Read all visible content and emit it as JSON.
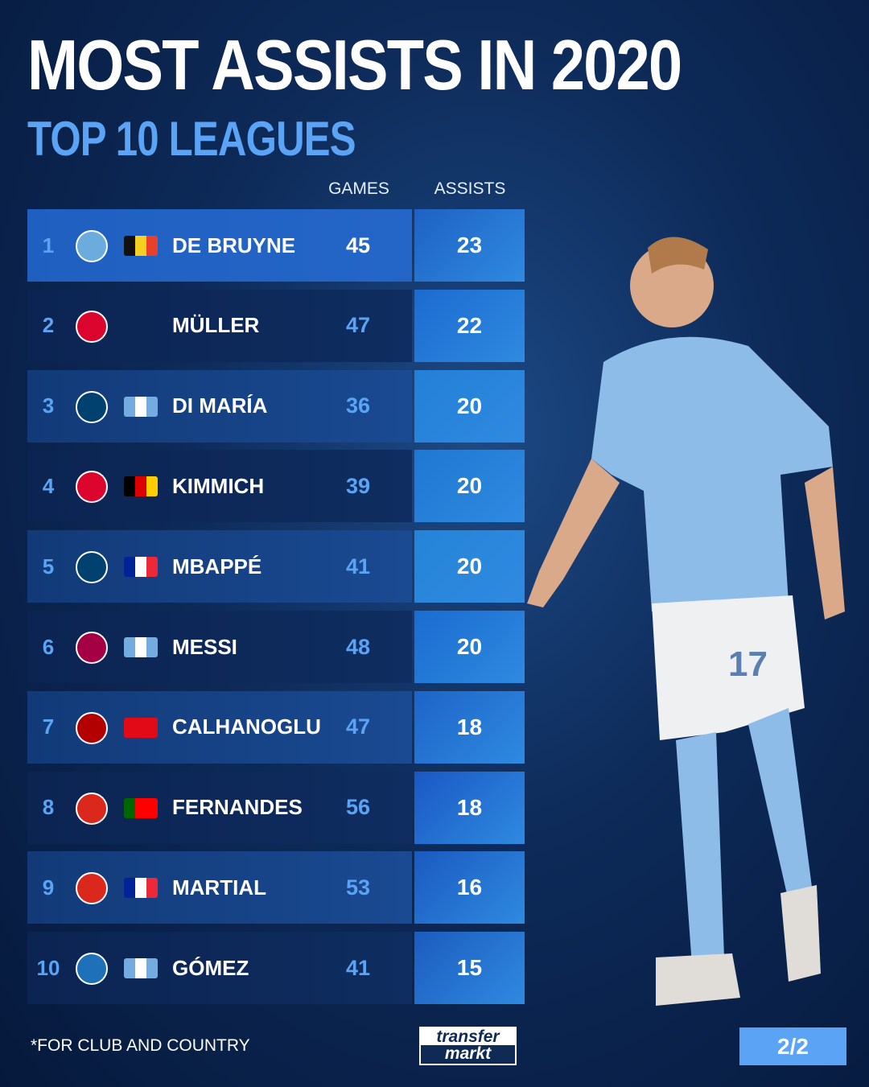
{
  "title": "MOST ASSISTS IN 2020",
  "subtitle": "TOP 10 LEAGUES",
  "footnote": "*FOR CLUB AND COUNTRY",
  "logo": {
    "line1": "transfer",
    "line2": "markt"
  },
  "page_indicator": "2/2",
  "player_shirt_number": "17",
  "colors": {
    "accent": "#5ba4f5",
    "highlight_row": "#1f5fc0",
    "background": "#0d2a58"
  },
  "chart_data": {
    "type": "table",
    "columns": [
      "GAMES",
      "ASSISTS"
    ],
    "rows": [
      {
        "rank": "1",
        "club": "manchester-city-crest",
        "flag": "belgium-flag",
        "flag_colors": [
          "#111111",
          "#f5d020",
          "#e8402a"
        ],
        "name": "DE BRUYNE",
        "games": 45,
        "assists": 23,
        "crest_color": "#6cabdd"
      },
      {
        "rank": "2",
        "club": "bayern-munich-crest",
        "flag": "",
        "flag_colors": [],
        "name": "MÜLLER",
        "games": 47,
        "assists": 22,
        "crest_color": "#dc052d"
      },
      {
        "rank": "3",
        "club": "psg-crest",
        "flag": "argentina-flag",
        "flag_colors": [
          "#74acdf",
          "#ffffff",
          "#74acdf"
        ],
        "name": "DI MARÍA",
        "games": 36,
        "assists": 20,
        "crest_color": "#004170"
      },
      {
        "rank": "4",
        "club": "bayern-munich-crest",
        "flag": "germany-flag",
        "flag_colors": [
          "#000000",
          "#dd0000",
          "#ffce00"
        ],
        "name": "KIMMICH",
        "games": 39,
        "assists": 20,
        "crest_color": "#dc052d"
      },
      {
        "rank": "5",
        "club": "psg-crest",
        "flag": "france-flag",
        "flag_colors": [
          "#002395",
          "#ffffff",
          "#ed2939"
        ],
        "name": "MBAPPÉ",
        "games": 41,
        "assists": 20,
        "crest_color": "#004170"
      },
      {
        "rank": "6",
        "club": "barcelona-crest",
        "flag": "argentina-flag",
        "flag_colors": [
          "#74acdf",
          "#ffffff",
          "#74acdf"
        ],
        "name": "MESSI",
        "games": 48,
        "assists": 20,
        "crest_color": "#a50044"
      },
      {
        "rank": "7",
        "club": "ac-milan-crest",
        "flag": "turkey-flag",
        "flag_colors": [
          "#e30a17",
          "#e30a17",
          "#e30a17"
        ],
        "name": "CALHANOGLU",
        "games": 47,
        "assists": 18,
        "crest_color": "#b30000"
      },
      {
        "rank": "8",
        "club": "manchester-united-crest",
        "flag": "portugal-flag",
        "flag_colors": [
          "#006600",
          "#ff0000",
          "#ff0000"
        ],
        "name": "FERNANDES",
        "games": 56,
        "assists": 18,
        "crest_color": "#da291c"
      },
      {
        "rank": "9",
        "club": "manchester-united-crest",
        "flag": "france-flag",
        "flag_colors": [
          "#002395",
          "#ffffff",
          "#ed2939"
        ],
        "name": "MARTIAL",
        "games": 53,
        "assists": 16,
        "crest_color": "#da291c"
      },
      {
        "rank": "10",
        "club": "atalanta-crest",
        "flag": "argentina-flag",
        "flag_colors": [
          "#74acdf",
          "#ffffff",
          "#74acdf"
        ],
        "name": "GÓMEZ",
        "games": 41,
        "assists": 15,
        "crest_color": "#1e71b8"
      }
    ]
  }
}
